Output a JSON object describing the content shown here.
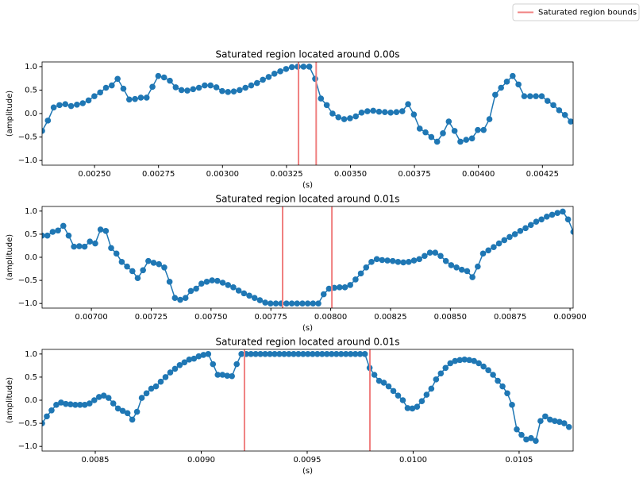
{
  "legend": {
    "label": "Saturated region bounds",
    "color": "#f08080",
    "position": "upper right"
  },
  "chart_data": [
    {
      "type": "line",
      "title": "Saturated region located around 0.00s",
      "xlabel": "(s)",
      "ylabel": "(amplitude)",
      "color": "#1f77b4",
      "marker": "o",
      "x": [
        0.002295,
        0.0023177,
        0.0023404,
        0.0023631,
        0.0023858,
        0.0024085,
        0.0024312,
        0.0024539,
        0.0024766,
        0.0024993,
        0.002522,
        0.0025447,
        0.0025674,
        0.0025901,
        0.0026128,
        0.0026355,
        0.0026582,
        0.0026809,
        0.0027036,
        0.0027263,
        0.002749,
        0.0027717,
        0.0027944,
        0.0028171,
        0.0028398,
        0.0028625,
        0.0028852,
        0.0029079,
        0.0029306,
        0.0029533,
        0.002976,
        0.0029987,
        0.0030214,
        0.0030441,
        0.0030668,
        0.0030895,
        0.0031122,
        0.0031349,
        0.0031576,
        0.0031803,
        0.003203,
        0.0032257,
        0.0032484,
        0.0032711,
        0.0032938,
        0.0033165,
        0.0033392,
        0.0033619,
        0.0033846,
        0.0034073,
        0.00343,
        0.0034527,
        0.0034754,
        0.0034981,
        0.0035208,
        0.0035435,
        0.0035662,
        0.0035889,
        0.0036116,
        0.0036343,
        0.003657,
        0.0036797,
        0.0037024,
        0.0037251,
        0.0037478,
        0.0037705,
        0.0037932,
        0.0038159,
        0.0038386,
        0.0038613,
        0.003884,
        0.0039067,
        0.0039294,
        0.0039521,
        0.0039748,
        0.0039975,
        0.0040202,
        0.0040429,
        0.0040656,
        0.0040883,
        0.004111,
        0.0041337,
        0.0041564,
        0.0041791,
        0.0042018,
        0.0042245,
        0.0042472,
        0.0042699,
        0.0042926,
        0.0043153,
        0.004338,
        0.0043607
      ],
      "values": [
        -0.37,
        -0.15,
        0.13,
        0.18,
        0.2,
        0.16,
        0.19,
        0.22,
        0.28,
        0.37,
        0.45,
        0.55,
        0.6,
        0.74,
        0.53,
        0.3,
        0.31,
        0.34,
        0.34,
        0.57,
        0.8,
        0.77,
        0.7,
        0.56,
        0.5,
        0.49,
        0.52,
        0.55,
        0.6,
        0.6,
        0.56,
        0.48,
        0.46,
        0.47,
        0.5,
        0.55,
        0.6,
        0.65,
        0.72,
        0.78,
        0.85,
        0.9,
        0.95,
        0.99,
        1.0,
        1.0,
        1.0,
        0.74,
        0.32,
        0.18,
        0.0,
        -0.08,
        -0.12,
        -0.1,
        -0.06,
        0.02,
        0.05,
        0.06,
        0.04,
        0.03,
        0.02,
        0.03,
        0.05,
        0.2,
        -0.02,
        -0.32,
        -0.4,
        -0.5,
        -0.6,
        -0.42,
        -0.17,
        -0.37,
        -0.6,
        -0.56,
        -0.53,
        -0.35,
        -0.35,
        -0.12,
        0.4,
        0.55,
        0.68,
        0.8,
        0.62,
        0.37,
        0.37,
        0.37,
        0.37,
        0.27,
        0.18,
        0.07,
        -0.03,
        -0.17
      ],
      "vlines": [
        0.003297,
        0.003366
      ],
      "xlim": [
        0.002295,
        0.00437
      ],
      "ylim": [
        -1.1,
        1.1
      ],
      "xticks": [
        {
          "value": 0.0025,
          "label": "0.00250"
        },
        {
          "value": 0.00275,
          "label": "0.00275"
        },
        {
          "value": 0.003,
          "label": "0.00300"
        },
        {
          "value": 0.00325,
          "label": "0.00325"
        },
        {
          "value": 0.0035,
          "label": "0.00350"
        },
        {
          "value": 0.00375,
          "label": "0.00375"
        },
        {
          "value": 0.004,
          "label": "0.00400"
        },
        {
          "value": 0.00425,
          "label": "0.00425"
        }
      ],
      "yticks": [
        {
          "value": -1,
          "label": "−1.0"
        },
        {
          "value": -0.5,
          "label": "−0.5"
        },
        {
          "value": 0,
          "label": "0.0"
        },
        0.5,
        {
          "value": 1,
          "label": "1.0"
        }
      ]
    },
    {
      "type": "line",
      "title": "Saturated region located around 0.01s",
      "xlabel": "(s)",
      "ylabel": "(amplitude)",
      "color": "#1f77b4",
      "marker": "o",
      "x": [
        0.006794,
        0.0068162,
        0.0068384,
        0.0068606,
        0.0068828,
        0.006905,
        0.0069272,
        0.0069494,
        0.0069716,
        0.0069938,
        0.007016,
        0.0070382,
        0.0070604,
        0.0070826,
        0.0071048,
        0.007127,
        0.0071492,
        0.0071714,
        0.0071936,
        0.0072158,
        0.007238,
        0.0072602,
        0.0072824,
        0.0073046,
        0.0073268,
        0.007349,
        0.0073712,
        0.0073934,
        0.0074156,
        0.0074378,
        0.00746,
        0.0074822,
        0.0075044,
        0.0075266,
        0.0075488,
        0.007571,
        0.0075932,
        0.0076154,
        0.0076376,
        0.0076598,
        0.007682,
        0.0077042,
        0.0077264,
        0.0077486,
        0.0077708,
        0.007793,
        0.0078152,
        0.0078374,
        0.0078596,
        0.0078818,
        0.007904,
        0.0079262,
        0.0079484,
        0.0079706,
        0.0079928,
        0.008015,
        0.0080372,
        0.0080594,
        0.0080816,
        0.0081038,
        0.008126,
        0.0081482,
        0.0081704,
        0.0081926,
        0.0082148,
        0.008237,
        0.0082592,
        0.0082814,
        0.0083036,
        0.0083258,
        0.008348,
        0.0083702,
        0.0083924,
        0.0084146,
        0.0084368,
        0.008459,
        0.0084812,
        0.0085034,
        0.0085256,
        0.0085478,
        0.00857,
        0.0085922,
        0.0086144,
        0.0086366,
        0.0086588,
        0.008681,
        0.0087032,
        0.0087254,
        0.0087476,
        0.0087698,
        0.008792,
        0.0088142,
        0.0088364,
        0.0088586,
        0.0088808,
        0.008903,
        0.0089252,
        0.0089474,
        0.0089696,
        0.0089918,
        0.009014
      ],
      "values": [
        0.47,
        0.47,
        0.55,
        0.58,
        0.68,
        0.47,
        0.23,
        0.24,
        0.23,
        0.34,
        0.3,
        0.6,
        0.57,
        0.2,
        0.08,
        -0.1,
        -0.2,
        -0.3,
        -0.45,
        -0.28,
        -0.08,
        -0.12,
        -0.15,
        -0.22,
        -0.53,
        -0.88,
        -0.92,
        -0.88,
        -0.73,
        -0.68,
        -0.57,
        -0.53,
        -0.5,
        -0.51,
        -0.55,
        -0.6,
        -0.65,
        -0.72,
        -0.78,
        -0.83,
        -0.88,
        -0.93,
        -0.98,
        -1.0,
        -1.0,
        -1.0,
        -1.0,
        -1.0,
        -1.0,
        -1.0,
        -1.0,
        -1.0,
        -1.0,
        -0.8,
        -0.68,
        -0.66,
        -0.65,
        -0.65,
        -0.6,
        -0.48,
        -0.35,
        -0.22,
        -0.1,
        -0.04,
        -0.06,
        -0.07,
        -0.08,
        -0.1,
        -0.11,
        -0.1,
        -0.07,
        -0.04,
        0.03,
        0.1,
        0.1,
        0.03,
        -0.08,
        -0.17,
        -0.22,
        -0.27,
        -0.3,
        -0.43,
        -0.2,
        0.08,
        0.15,
        0.22,
        0.3,
        0.37,
        0.44,
        0.5,
        0.57,
        0.63,
        0.7,
        0.77,
        0.82,
        0.88,
        0.92,
        0.96,
        0.99,
        0.82,
        0.55
      ],
      "vlines": [
        0.007799,
        0.008005
      ],
      "xlim": [
        0.006794,
        0.009013
      ],
      "ylim": [
        -1.1,
        1.1
      ],
      "xticks": [
        {
          "value": 0.007,
          "label": "0.00700"
        },
        {
          "value": 0.00725,
          "label": "0.00725"
        },
        {
          "value": 0.0075,
          "label": "0.00750"
        },
        {
          "value": 0.00775,
          "label": "0.00775"
        },
        {
          "value": 0.008,
          "label": "0.00800"
        },
        {
          "value": 0.00825,
          "label": "0.00825"
        },
        {
          "value": 0.0085,
          "label": "0.00850"
        },
        {
          "value": 0.00875,
          "label": "0.00875"
        },
        {
          "value": 0.009,
          "label": "0.00900"
        }
      ],
      "yticks": [
        {
          "value": -1,
          "label": "−1.0"
        },
        {
          "value": -0.5,
          "label": "−0.5"
        },
        {
          "value": 0,
          "label": "0.0"
        },
        0.5,
        {
          "value": 1,
          "label": "1.0"
        }
      ]
    },
    {
      "type": "line",
      "title": "Saturated region located around 0.01s",
      "xlabel": "(s)",
      "ylabel": "(amplitude)",
      "color": "#1f77b4",
      "marker": "o",
      "x": [
        0.008249,
        0.0082714,
        0.0082938,
        0.0083162,
        0.0083386,
        0.008361,
        0.0083834,
        0.0084058,
        0.0084282,
        0.0084506,
        0.008473,
        0.0084954,
        0.0085178,
        0.0085402,
        0.0085626,
        0.008585,
        0.0086074,
        0.0086298,
        0.0086522,
        0.0086746,
        0.008697,
        0.0087194,
        0.0087418,
        0.0087642,
        0.0087866,
        0.008809,
        0.0088314,
        0.0088538,
        0.0088762,
        0.0088986,
        0.008921,
        0.0089434,
        0.0089658,
        0.0089882,
        0.0090106,
        0.009033,
        0.0090554,
        0.0090778,
        0.0091002,
        0.0091226,
        0.009145,
        0.0091674,
        0.0091898,
        0.0092122,
        0.0092346,
        0.009257,
        0.0092794,
        0.0093018,
        0.0093242,
        0.0093466,
        0.009369,
        0.0093914,
        0.0094138,
        0.0094362,
        0.0094586,
        0.009481,
        0.0095034,
        0.0095258,
        0.0095482,
        0.0095706,
        0.009593,
        0.0096154,
        0.0096378,
        0.0096602,
        0.0096826,
        0.009705,
        0.0097274,
        0.0097498,
        0.0097722,
        0.0097946,
        0.009817,
        0.0098394,
        0.0098618,
        0.0098842,
        0.0099066,
        0.009929,
        0.0099514,
        0.0099738,
        0.0099962,
        0.0100186,
        0.010041,
        0.0100634,
        0.0100858,
        0.0101082,
        0.0101306,
        0.010153,
        0.0101754,
        0.0101978,
        0.0102202,
        0.0102426,
        0.010265,
        0.0102874,
        0.0103098,
        0.0103322,
        0.0103546,
        0.010377,
        0.0103994,
        0.0104218,
        0.0104442,
        0.0104666,
        0.010489,
        0.0105114,
        0.0105338,
        0.0105562,
        0.0105786,
        0.010601,
        0.0106234,
        0.0106458,
        0.0106682,
        0.0106906,
        0.010713,
        0.0107354
      ],
      "values": [
        -0.5,
        -0.35,
        -0.22,
        -0.1,
        -0.05,
        -0.08,
        -0.09,
        -0.1,
        -0.1,
        -0.1,
        -0.07,
        0.0,
        0.07,
        0.1,
        0.05,
        -0.07,
        -0.18,
        -0.23,
        -0.28,
        -0.42,
        -0.25,
        0.05,
        0.15,
        0.25,
        0.3,
        0.4,
        0.5,
        0.6,
        0.68,
        0.76,
        0.82,
        0.88,
        0.9,
        0.95,
        0.98,
        1.0,
        0.78,
        0.55,
        0.55,
        0.53,
        0.52,
        0.78,
        1.0,
        1.0,
        1.0,
        1.0,
        1.0,
        1.0,
        1.0,
        1.0,
        1.0,
        1.0,
        1.0,
        1.0,
        1.0,
        1.0,
        1.0,
        1.0,
        1.0,
        1.0,
        1.0,
        1.0,
        1.0,
        1.0,
        1.0,
        1.0,
        1.0,
        1.0,
        1.0,
        0.7,
        0.55,
        0.42,
        0.38,
        0.3,
        0.2,
        0.1,
        0.0,
        -0.17,
        -0.18,
        -0.14,
        -0.02,
        0.12,
        0.25,
        0.45,
        0.58,
        0.7,
        0.8,
        0.85,
        0.87,
        0.88,
        0.87,
        0.85,
        0.8,
        0.73,
        0.65,
        0.55,
        0.42,
        0.3,
        0.15,
        -0.1,
        -0.63,
        -0.75,
        -0.85,
        -0.82,
        -0.88,
        -0.45,
        -0.35,
        -0.42,
        -0.45,
        -0.47,
        -0.5,
        -0.58
      ],
      "vlines": [
        0.009204,
        0.009796
      ],
      "xlim": [
        0.008249,
        0.010755
      ],
      "ylim": [
        -1.1,
        1.1
      ],
      "xticks": [
        0.0085,
        {
          "value": 0.009,
          "label": "0.0090"
        },
        {
          "value": 0.0095,
          "label": "0.0095"
        },
        {
          "value": 0.01,
          "label": "0.0100"
        },
        0.0105
      ],
      "yticks": [
        {
          "value": -1,
          "label": "−1.0"
        },
        {
          "value": -0.5,
          "label": "−0.5"
        },
        {
          "value": 0,
          "label": "0.0"
        },
        0.5,
        {
          "value": 1,
          "label": "1.0"
        }
      ]
    }
  ]
}
